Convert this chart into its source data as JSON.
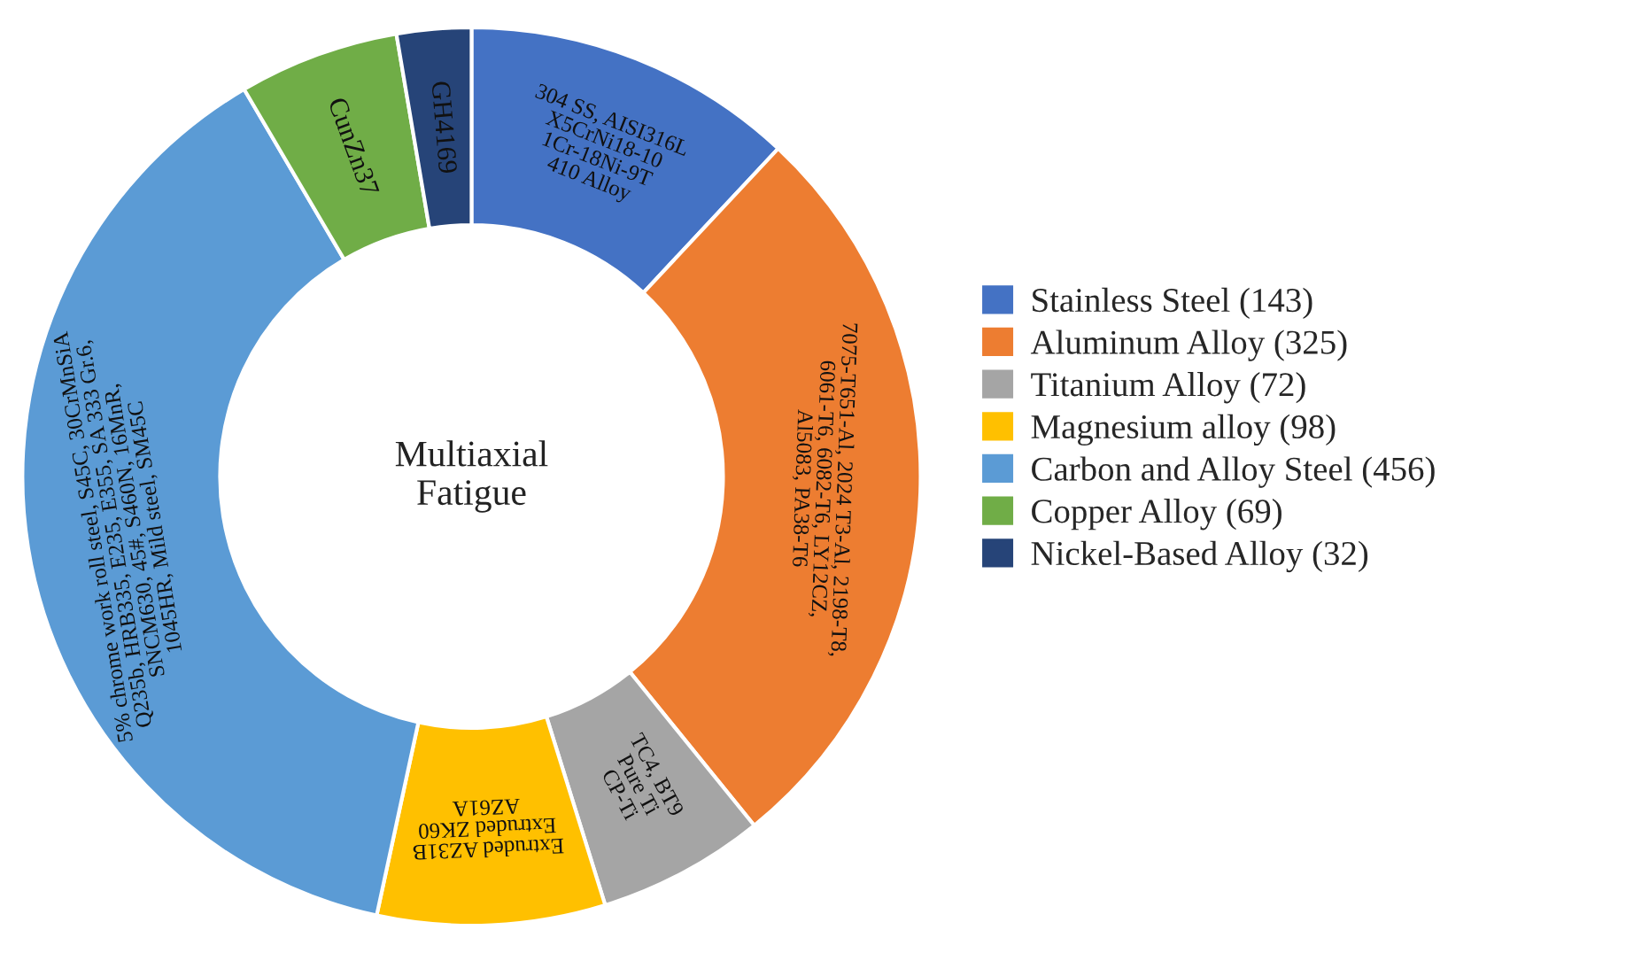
{
  "chart_data": {
    "type": "donut",
    "categories": [
      "Stainless Steel (143)",
      "Aluminum Alloy (325)",
      "Titanium Alloy (72)",
      "Magnesium alloy (98)",
      "Carbon and Alloy Steel (456)",
      "Copper Alloy (69)",
      "Nickel-Based Alloy (32)"
    ],
    "values": [
      143,
      325,
      72,
      98,
      456,
      69,
      32
    ],
    "colors": [
      "#4472c4",
      "#ed7d31",
      "#a5a5a5",
      "#ffc000",
      "#5b9bd5",
      "#70ad47",
      "#264478"
    ],
    "annotations": [
      "Multiaxial\nFatigue",
      "304 SS, AISI316L\nX5CrNi18-10\n1Cr-18Ni-9T\n410 Alloy",
      "7075-T651-Al, 2024 T3-Al, 2198-T8,\n6061-T6, 6082-T6, LY12CZ,\nAl5083, PA38-T6",
      "TC4, BT9\nPure Ti\nCP-Ti",
      "Extruded AZ31B\nExtruded ZK60\nAZ61A",
      "5% chrome work roll steel, S45C, 30CrMnSiA\nQ235b, HRB335, E235, E355, SA 333 Gr.6,\nSNCM630, 45#, S460N, 16MnR,\n1045HR, Mild steel, SM45C",
      "CunZn37",
      "GH4169"
    ],
    "legend": "right"
  }
}
